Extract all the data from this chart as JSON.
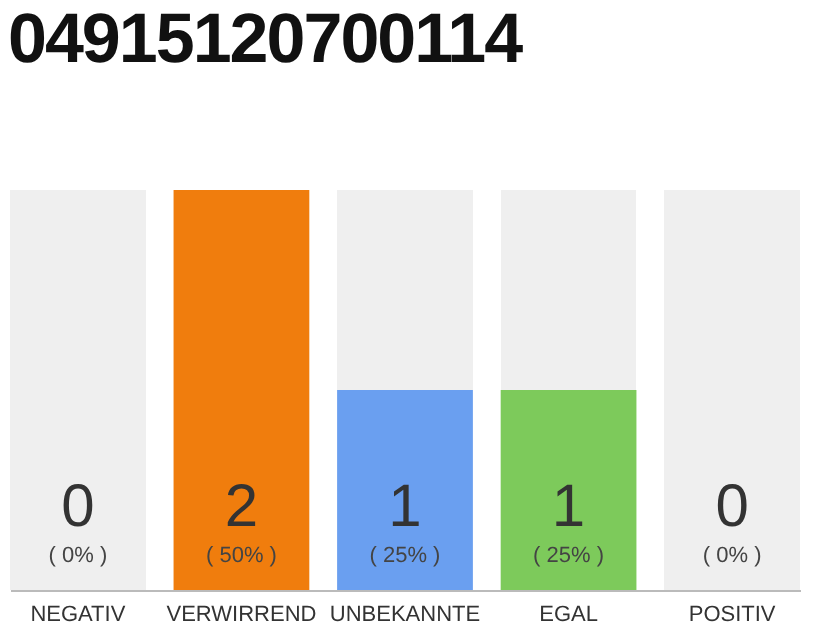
{
  "chart_data": {
    "type": "bar",
    "title": "04915120700114",
    "categories": [
      "NEGATIV",
      "VERWIRREND",
      "UNBEKANNTE",
      "EGAL",
      "POSITIV"
    ],
    "values": [
      0,
      2,
      1,
      1,
      0
    ],
    "colors": [
      "#f07d0d",
      "#f07d0d",
      "#6a9ff0",
      "#7dca5b",
      "#7dca5b"
    ],
    "value_labels": [
      "0",
      "2",
      "1",
      "1",
      "0"
    ],
    "annotations": [
      "( 0% )",
      "( 50% )",
      "( 25% )",
      "( 25% )",
      "( 0% )"
    ]
  }
}
